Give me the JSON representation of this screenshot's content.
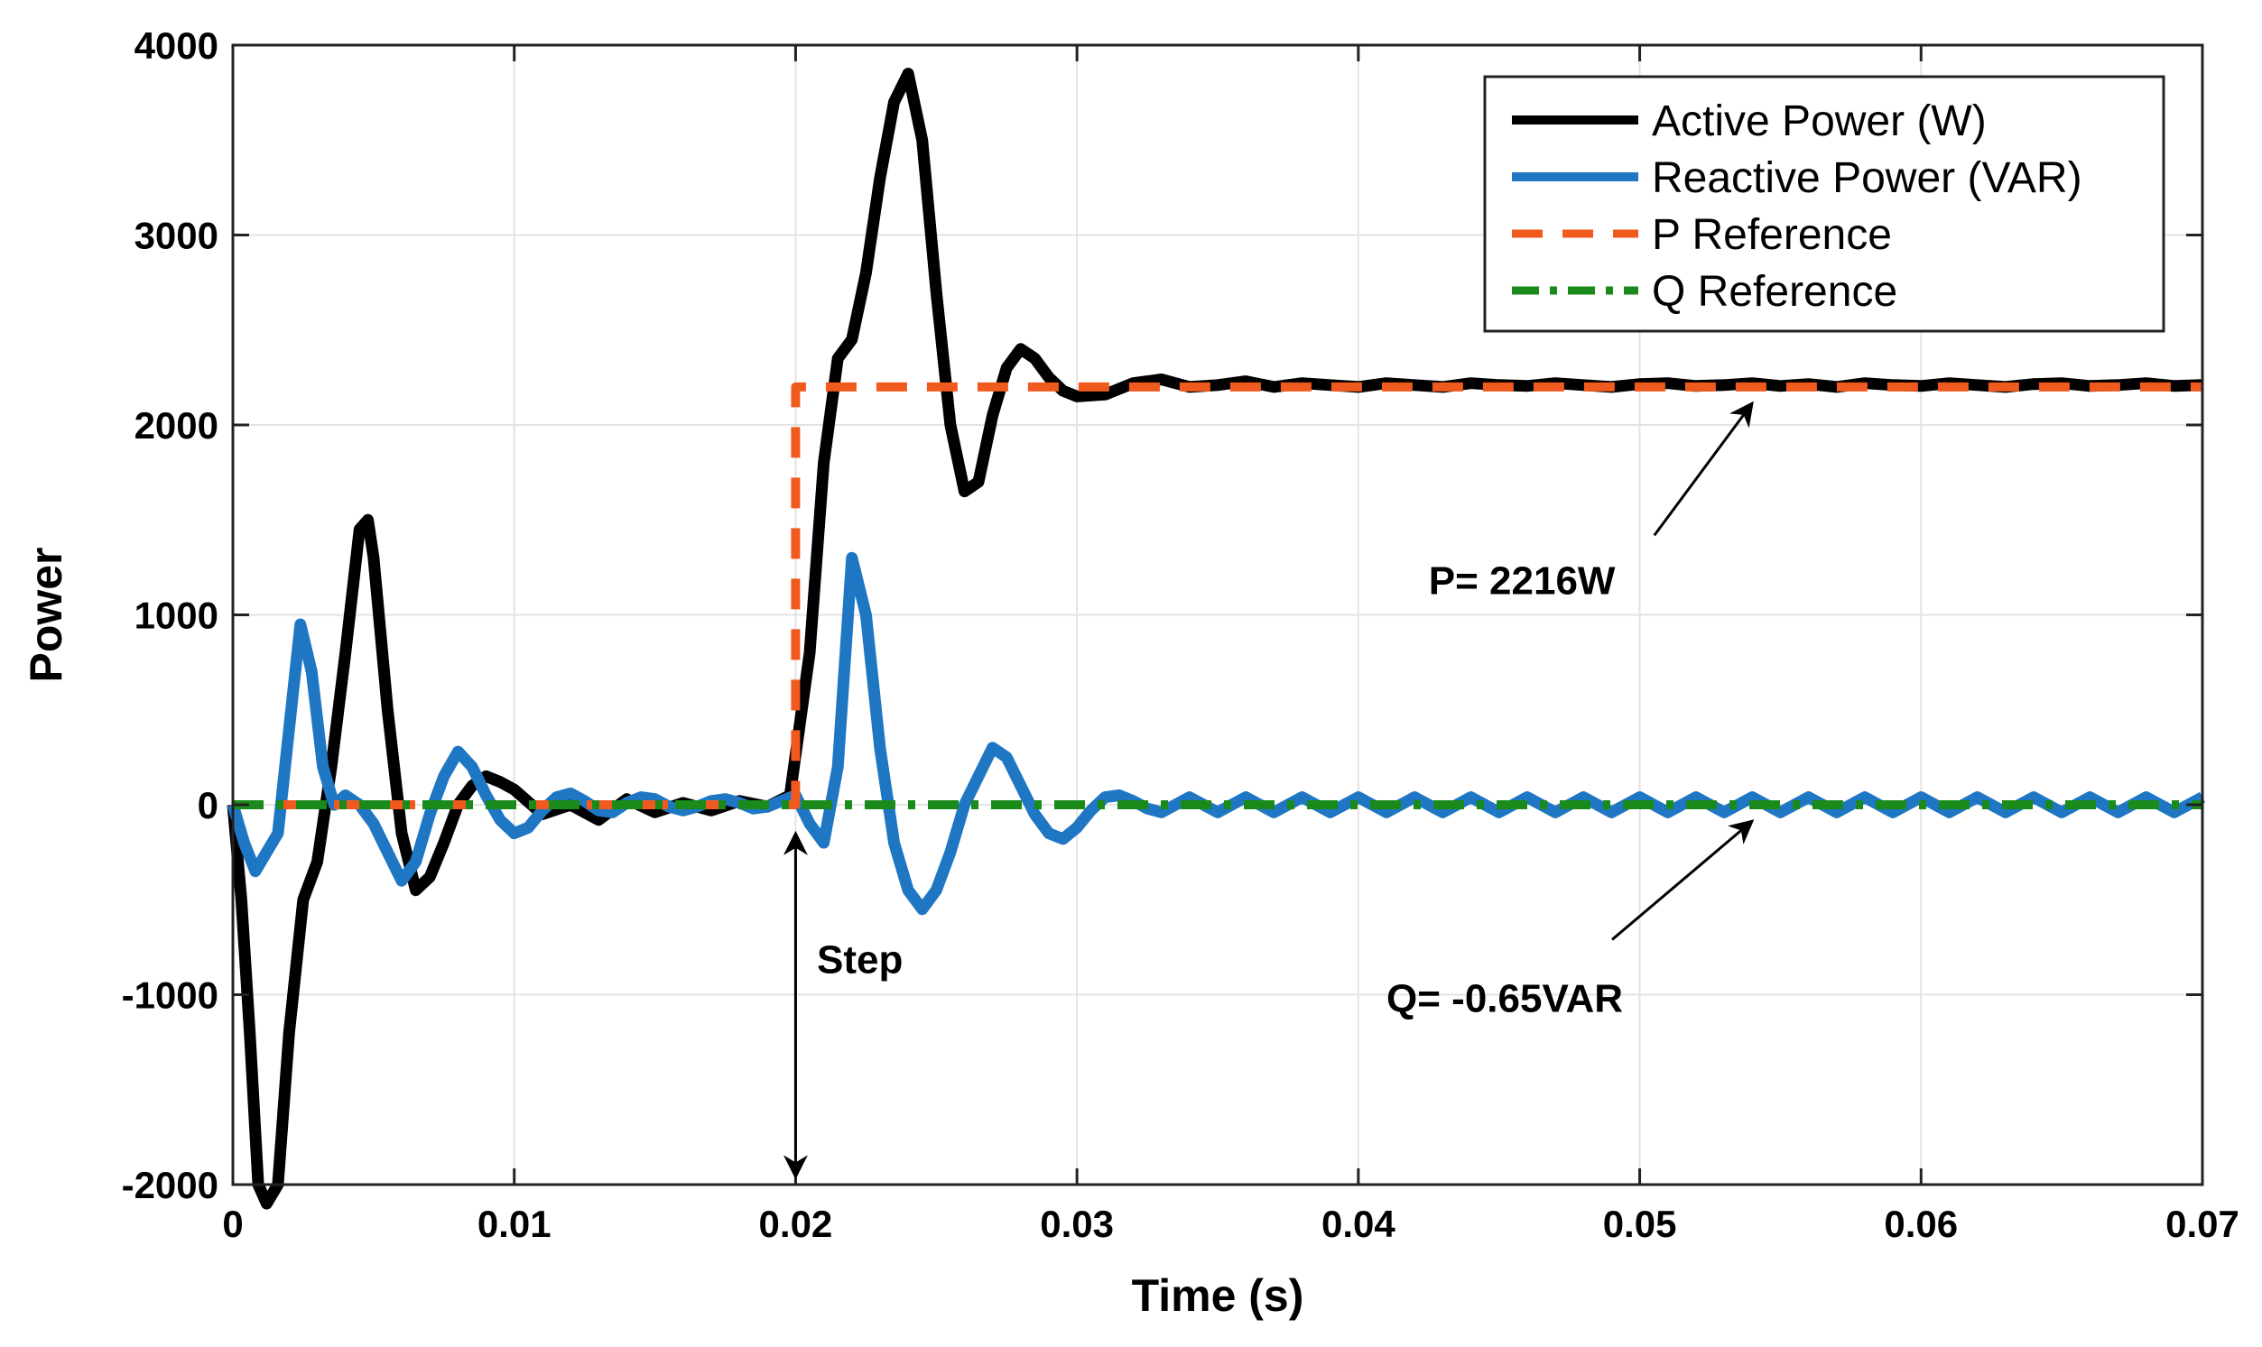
{
  "chart_data": {
    "type": "line",
    "xlabel": "Time (s)",
    "ylabel": "Power",
    "xlim": [
      0,
      0.07
    ],
    "ylim": [
      -2000,
      4000
    ],
    "grid": true,
    "legend_position": "top-right",
    "x_ticks": [
      0,
      0.01,
      0.02,
      0.03,
      0.04,
      0.05,
      0.06,
      0.07
    ],
    "x_tick_labels": [
      "0",
      "0.01",
      "0.02",
      "0.03",
      "0.04",
      "0.05",
      "0.06",
      "0.07"
    ],
    "y_ticks": [
      -2000,
      -1000,
      0,
      1000,
      2000,
      3000,
      4000
    ],
    "y_tick_labels": [
      "-2000",
      "-1000",
      "0",
      "1000",
      "2000",
      "3000",
      "4000"
    ],
    "series": [
      {
        "name": "Active Power (W)",
        "color": "#000000",
        "style": "solid",
        "x": [
          0,
          0.0003,
          0.0006,
          0.0009,
          0.0012,
          0.0016,
          0.002,
          0.0025,
          0.003,
          0.0035,
          0.004,
          0.0045,
          0.0048,
          0.005,
          0.0055,
          0.006,
          0.0065,
          0.007,
          0.0075,
          0.008,
          0.0085,
          0.009,
          0.0095,
          0.01,
          0.011,
          0.012,
          0.013,
          0.014,
          0.015,
          0.016,
          0.017,
          0.018,
          0.019,
          0.0198,
          0.0205,
          0.021,
          0.0215,
          0.022,
          0.0225,
          0.023,
          0.0235,
          0.024,
          0.0245,
          0.025,
          0.0255,
          0.026,
          0.0265,
          0.027,
          0.0275,
          0.028,
          0.0285,
          0.029,
          0.0295,
          0.03,
          0.031,
          0.032,
          0.033,
          0.034,
          0.035,
          0.036,
          0.037,
          0.038,
          0.039,
          0.04,
          0.041,
          0.042,
          0.043,
          0.044,
          0.045,
          0.046,
          0.047,
          0.048,
          0.049,
          0.05,
          0.051,
          0.052,
          0.053,
          0.054,
          0.055,
          0.056,
          0.057,
          0.058,
          0.059,
          0.06,
          0.061,
          0.062,
          0.063,
          0.064,
          0.065,
          0.066,
          0.067,
          0.068,
          0.069,
          0.07
        ],
        "values": [
          0,
          -500,
          -1200,
          -2000,
          -2100,
          -2000,
          -1200,
          -500,
          -300,
          200,
          800,
          1450,
          1500,
          1300,
          500,
          -150,
          -450,
          -380,
          -200,
          0,
          100,
          150,
          120,
          80,
          -50,
          0,
          -80,
          30,
          -40,
          10,
          -30,
          20,
          -10,
          50,
          800,
          1800,
          2350,
          2450,
          2800,
          3300,
          3700,
          3850,
          3500,
          2700,
          2000,
          1650,
          1700,
          2050,
          2300,
          2400,
          2350,
          2250,
          2180,
          2150,
          2160,
          2220,
          2240,
          2200,
          2210,
          2230,
          2200,
          2220,
          2210,
          2200,
          2220,
          2210,
          2200,
          2220,
          2210,
          2205,
          2220,
          2210,
          2200,
          2215,
          2220,
          2205,
          2210,
          2220,
          2205,
          2215,
          2200,
          2220,
          2210,
          2205,
          2220,
          2210,
          2200,
          2215,
          2220,
          2205,
          2210,
          2220,
          2205,
          2210
        ]
      },
      {
        "name": "Reactive Power (VAR)",
        "color": "#1f77c4",
        "style": "solid",
        "x": [
          0,
          0.0004,
          0.0008,
          0.0012,
          0.0016,
          0.002,
          0.0024,
          0.0028,
          0.0032,
          0.0036,
          0.004,
          0.0045,
          0.005,
          0.0055,
          0.006,
          0.0065,
          0.007,
          0.0075,
          0.008,
          0.0085,
          0.009,
          0.0095,
          0.01,
          0.0105,
          0.011,
          0.0115,
          0.012,
          0.0125,
          0.013,
          0.0135,
          0.014,
          0.0145,
          0.015,
          0.0155,
          0.016,
          0.0165,
          0.017,
          0.0175,
          0.018,
          0.0185,
          0.019,
          0.0195,
          0.02,
          0.0205,
          0.021,
          0.0215,
          0.022,
          0.0225,
          0.023,
          0.0235,
          0.024,
          0.0245,
          0.025,
          0.0255,
          0.026,
          0.0265,
          0.027,
          0.0275,
          0.028,
          0.0285,
          0.029,
          0.0295,
          0.03,
          0.0305,
          0.031,
          0.0315,
          0.032,
          0.0325,
          0.033,
          0.034,
          0.035,
          0.036,
          0.037,
          0.038,
          0.039,
          0.04,
          0.041,
          0.042,
          0.043,
          0.044,
          0.045,
          0.046,
          0.047,
          0.048,
          0.049,
          0.05,
          0.051,
          0.052,
          0.053,
          0.054,
          0.055,
          0.056,
          0.057,
          0.058,
          0.059,
          0.06,
          0.061,
          0.062,
          0.063,
          0.064,
          0.065,
          0.066,
          0.067,
          0.068,
          0.069,
          0.07
        ],
        "values": [
          0,
          -200,
          -350,
          -250,
          -150,
          400,
          950,
          700,
          200,
          0,
          50,
          0,
          -100,
          -250,
          -400,
          -300,
          -50,
          150,
          280,
          200,
          50,
          -80,
          -150,
          -120,
          -30,
          40,
          60,
          20,
          -30,
          -40,
          10,
          40,
          30,
          -10,
          -30,
          -10,
          20,
          30,
          10,
          -20,
          -10,
          20,
          50,
          -100,
          -200,
          200,
          1300,
          1000,
          300,
          -200,
          -450,
          -550,
          -450,
          -250,
          0,
          150,
          300,
          250,
          100,
          -50,
          -150,
          -180,
          -120,
          -30,
          40,
          50,
          20,
          -20,
          -40,
          40,
          -40,
          40,
          -40,
          40,
          -40,
          40,
          -40,
          40,
          -40,
          40,
          -40,
          40,
          -40,
          40,
          -40,
          40,
          -40,
          40,
          -40,
          40,
          -40,
          40,
          -40,
          40,
          -40,
          40,
          -40,
          40,
          -40,
          40,
          -40,
          40,
          -40,
          40,
          -40,
          40
        ]
      },
      {
        "name": "P Reference",
        "color": "#f05a1e",
        "style": "dashed",
        "x": [
          0,
          0.02,
          0.02,
          0.07
        ],
        "values": [
          0,
          0,
          2200,
          2200
        ]
      },
      {
        "name": "Q Reference",
        "color": "#1a8a1a",
        "style": "dashdot",
        "x": [
          0,
          0.07
        ],
        "values": [
          0,
          0
        ]
      }
    ],
    "annotations": [
      {
        "text": "P= 2216W",
        "target_x": 0.054,
        "target_y": 2200,
        "text_x": 0.0425,
        "text_y": 1300
      },
      {
        "text": "Q= -0.65VAR",
        "target_x": 0.054,
        "target_y": 0,
        "text_x": 0.041,
        "text_y": -900
      },
      {
        "text": "Step",
        "target_x": 0.02,
        "target_y": 0,
        "text_x": 0.0205,
        "text_y": -800
      }
    ]
  }
}
